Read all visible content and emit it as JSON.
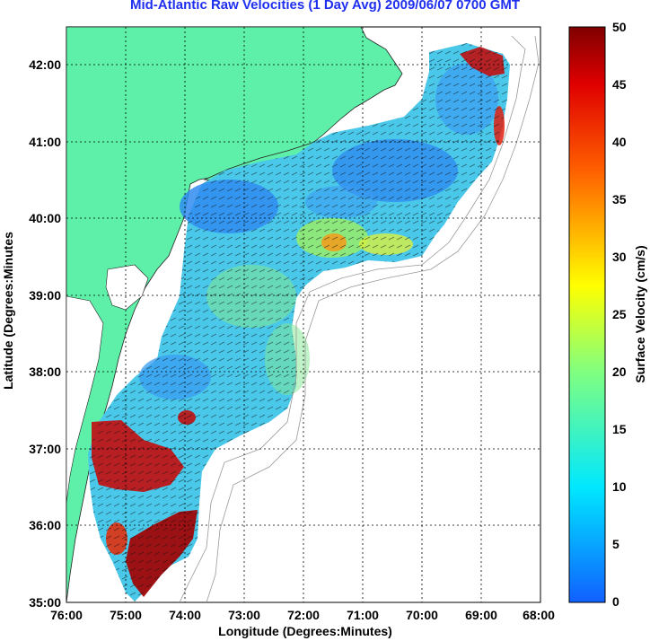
{
  "title": "Mid-Atlantic Raw Velocities (1 Day Avg) 2009/06/07 0700 GMT",
  "xlabel": "Longitude (Degrees:Minutes)",
  "ylabel": "Latitude (Degrees:Minutes",
  "colorbar_label": "Surface Velocity (cm/s)",
  "x_ticks": [
    "76:00",
    "75:00",
    "74:00",
    "73:00",
    "72:00",
    "71:00",
    "70:00",
    "69:00",
    "68:00"
  ],
  "y_ticks": [
    "42:00",
    "41:00",
    "40:00",
    "39:00",
    "38:00",
    "37:00",
    "36:00",
    "35:00"
  ],
  "colorbar_ticks": [
    "50",
    "45",
    "40",
    "35",
    "30",
    "25",
    "20",
    "15",
    "10",
    "5",
    "0"
  ],
  "colors": {
    "land": "#5ef0a8",
    "ocean_low": "#2f8cf0",
    "ocean_mid": "#3fd0e8",
    "ocean_high": "#c01010",
    "title": "#1f2ff0"
  },
  "chart_data": {
    "type": "heatmap",
    "xlim": [
      -76,
      -68
    ],
    "ylim": [
      35,
      42.5
    ],
    "colorbar_range": [
      0,
      50
    ],
    "grid": true
  }
}
